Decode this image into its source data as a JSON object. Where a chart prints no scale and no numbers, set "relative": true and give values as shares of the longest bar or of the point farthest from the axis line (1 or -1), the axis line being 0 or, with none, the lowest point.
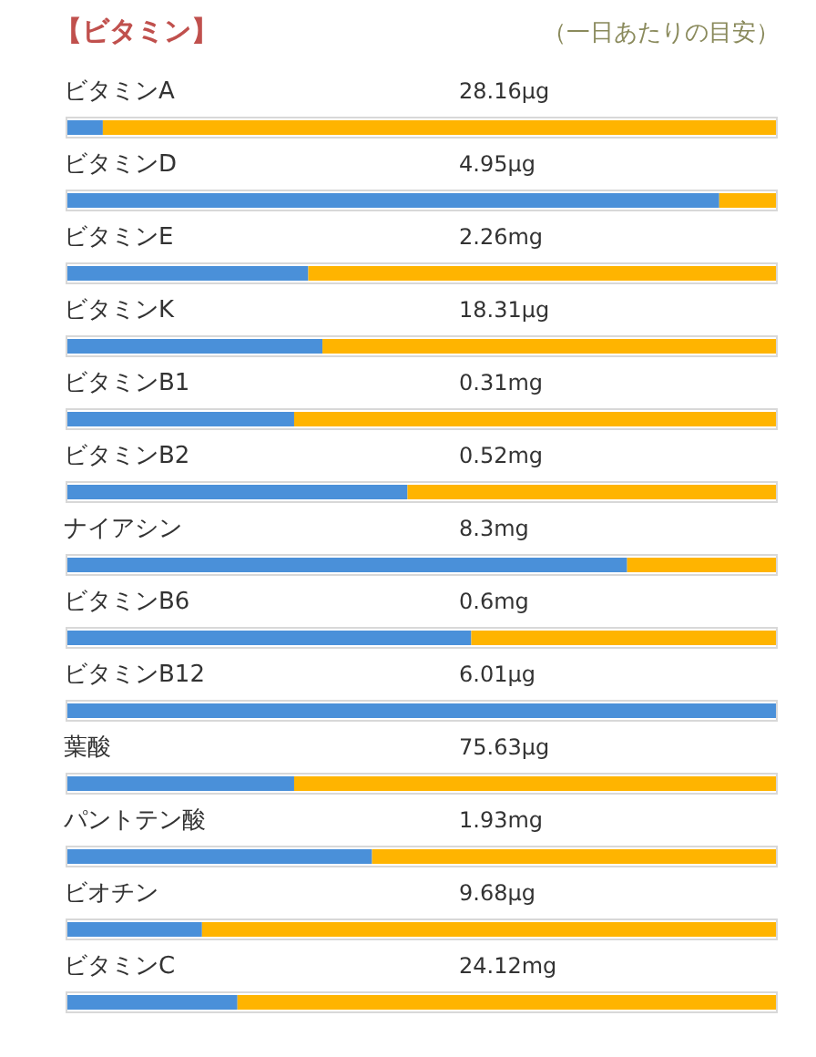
{
  "chart_data": {
    "type": "bar",
    "orientation": "horizontal",
    "stacked": true,
    "relative": true,
    "title": "【ビタミン】",
    "subtitle": "（一日あたりの目安）",
    "categories": [
      "ビタミンA",
      "ビタミンD",
      "ビタミンE",
      "ビタミンK",
      "ビタミンB1",
      "ビタミンB2",
      "ナイアシン",
      "ビタミンB6",
      "ビタミンB12",
      "葉酸",
      "パントテン酸",
      "ビオチン",
      "ビタミンC"
    ],
    "annotations": [
      "28.16μg",
      "4.95μg",
      "2.26mg",
      "18.31μg",
      "0.31mg",
      "0.52mg",
      "8.3mg",
      "0.6mg",
      "6.01μg",
      "75.63μg",
      "1.93mg",
      "9.68μg",
      "24.12mg"
    ],
    "series": [
      {
        "color": "#4a90d9",
        "values": [
          0.05,
          0.92,
          0.34,
          0.36,
          0.32,
          0.48,
          0.79,
          0.57,
          1.0,
          0.32,
          0.43,
          0.19,
          0.24
        ]
      },
      {
        "color": "#ffb400",
        "values": [
          0.95,
          0.08,
          0.66,
          0.64,
          0.68,
          0.52,
          0.21,
          0.43,
          0.0,
          0.68,
          0.57,
          0.81,
          0.76
        ]
      }
    ]
  }
}
